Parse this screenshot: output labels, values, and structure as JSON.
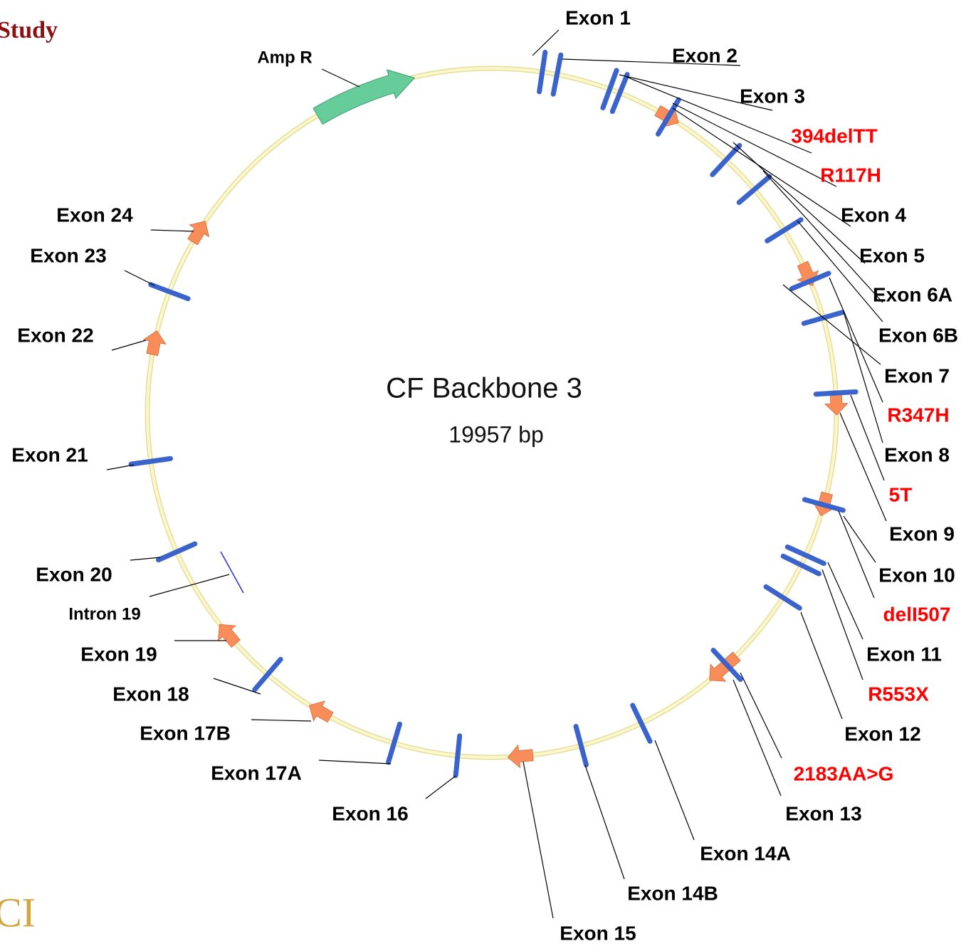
{
  "header": {
    "title": "Study",
    "logo": "CI"
  },
  "map": {
    "name": "CF Backbone 3",
    "size": "19957 bp"
  },
  "labels": [
    {
      "text": "Exon 1",
      "color": "#000000"
    },
    {
      "text": "Amp R",
      "color": "#000000"
    },
    {
      "text": "Exon 2",
      "color": "#000000"
    },
    {
      "text": "Exon 3",
      "color": "#000000"
    },
    {
      "text": "394delTT",
      "color": "#ff0000"
    },
    {
      "text": "R117H",
      "color": "#ff0000"
    },
    {
      "text": "Exon 4",
      "color": "#000000"
    },
    {
      "text": "Exon 5",
      "color": "#000000"
    },
    {
      "text": "Exon 6A",
      "color": "#000000"
    },
    {
      "text": "Exon 6B",
      "color": "#000000"
    },
    {
      "text": "Exon 7",
      "color": "#000000"
    },
    {
      "text": "R347H",
      "color": "#ff0000"
    },
    {
      "text": "Exon 8",
      "color": "#000000"
    },
    {
      "text": "5T",
      "color": "#ff0000"
    },
    {
      "text": "Exon 9",
      "color": "#000000"
    },
    {
      "text": "Exon 10",
      "color": "#000000"
    },
    {
      "text": "delI507",
      "color": "#ff0000"
    },
    {
      "text": "Exon 11",
      "color": "#000000"
    },
    {
      "text": "R553X",
      "color": "#ff0000"
    },
    {
      "text": "Exon 12",
      "color": "#000000"
    },
    {
      "text": "2183AA>G",
      "color": "#ff0000"
    },
    {
      "text": "Exon 13",
      "color": "#000000"
    },
    {
      "text": "Exon 14A",
      "color": "#000000"
    },
    {
      "text": "Exon 14B",
      "color": "#000000"
    },
    {
      "text": "Exon 15",
      "color": "#000000"
    },
    {
      "text": "Exon 16",
      "color": "#000000"
    },
    {
      "text": "Exon 17A",
      "color": "#000000"
    },
    {
      "text": "Exon 17B",
      "color": "#000000"
    },
    {
      "text": "Exon 18",
      "color": "#000000"
    },
    {
      "text": "Exon 19",
      "color": "#000000"
    },
    {
      "text": "Intron 19",
      "color": "#000000"
    },
    {
      "text": "Exon 20",
      "color": "#000000"
    },
    {
      "text": "Exon 21",
      "color": "#000000"
    },
    {
      "text": "Exon 22",
      "color": "#000000"
    },
    {
      "text": "Exon 23",
      "color": "#000000"
    },
    {
      "text": "Exon 24",
      "color": "#000000"
    }
  ]
}
